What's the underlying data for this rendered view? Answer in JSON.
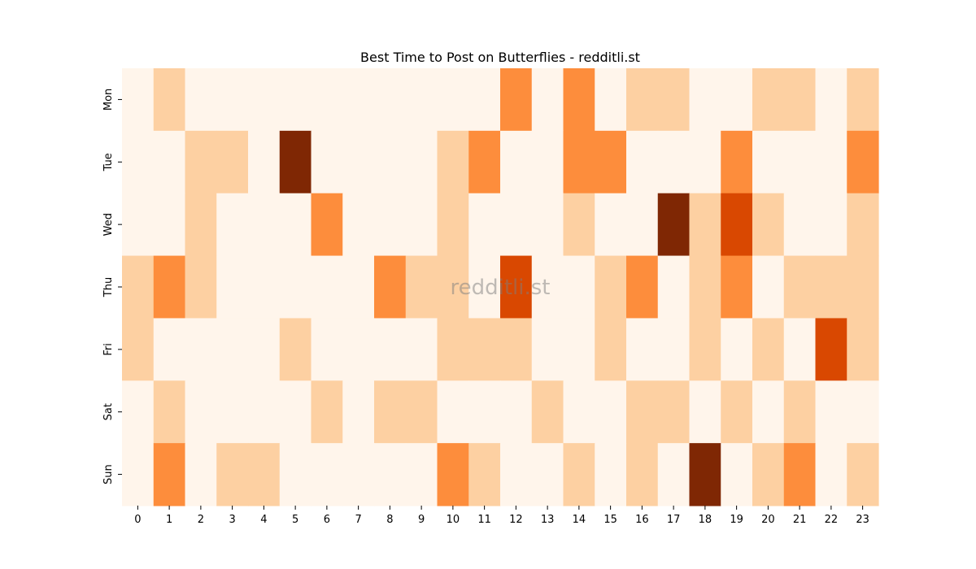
{
  "chart_data": {
    "type": "heatmap",
    "title": "Best Time to Post on Butterflies - redditli.st",
    "watermark": "redditli.st",
    "xlabel": "",
    "ylabel": "",
    "x": [
      "0",
      "1",
      "2",
      "3",
      "4",
      "5",
      "6",
      "7",
      "8",
      "9",
      "10",
      "11",
      "12",
      "13",
      "14",
      "15",
      "16",
      "17",
      "18",
      "19",
      "20",
      "21",
      "22",
      "23"
    ],
    "y": [
      "Mon",
      "Tue",
      "Wed",
      "Thu",
      "Fri",
      "Sat",
      "Sun"
    ],
    "values": [
      [
        0,
        1,
        0,
        0,
        0,
        0,
        0,
        0,
        0,
        0,
        0,
        0,
        2,
        0,
        2,
        0,
        1,
        1,
        0,
        0,
        1,
        1,
        0,
        1
      ],
      [
        0,
        0,
        1,
        1,
        0,
        4,
        0,
        0,
        0,
        0,
        1,
        2,
        0,
        0,
        2,
        2,
        0,
        0,
        0,
        2,
        0,
        0,
        0,
        2
      ],
      [
        0,
        0,
        1,
        0,
        0,
        0,
        2,
        0,
        0,
        0,
        1,
        0,
        0,
        0,
        1,
        0,
        0,
        4,
        1,
        3,
        1,
        0,
        0,
        1
      ],
      [
        1,
        2,
        1,
        0,
        0,
        0,
        0,
        0,
        2,
        1,
        1,
        0,
        3,
        0,
        0,
        1,
        2,
        0,
        1,
        2,
        0,
        1,
        1,
        1
      ],
      [
        1,
        0,
        0,
        0,
        0,
        1,
        0,
        0,
        0,
        0,
        1,
        1,
        1,
        0,
        0,
        1,
        0,
        0,
        1,
        0,
        1,
        0,
        3,
        1
      ],
      [
        0,
        1,
        0,
        0,
        0,
        0,
        1,
        0,
        1,
        1,
        0,
        0,
        0,
        1,
        0,
        0,
        1,
        1,
        0,
        1,
        0,
        1,
        0,
        0
      ],
      [
        0,
        2,
        0,
        1,
        1,
        0,
        0,
        0,
        0,
        0,
        2,
        1,
        0,
        0,
        1,
        0,
        1,
        0,
        4,
        0,
        1,
        2,
        0,
        1
      ]
    ],
    "colormap": [
      "#fff5eb",
      "#fdd0a2",
      "#fd8d3c",
      "#d94801",
      "#7f2704"
    ],
    "grid": false,
    "legend": "none"
  }
}
